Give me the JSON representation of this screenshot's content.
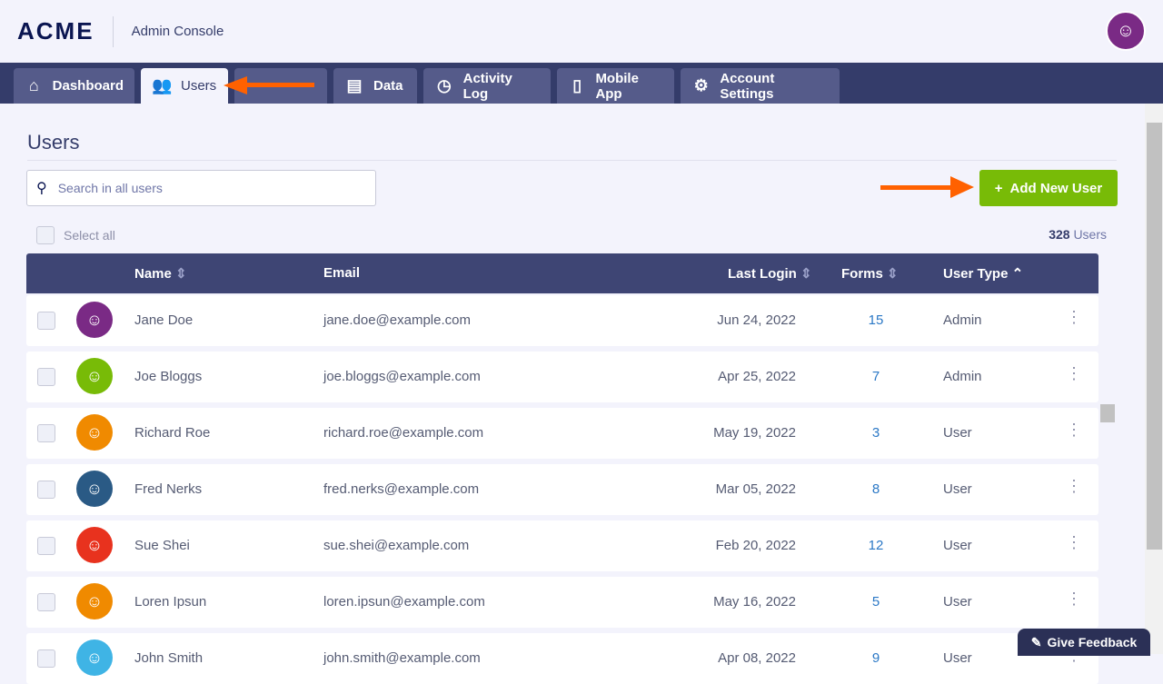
{
  "header": {
    "logo": "ACME",
    "app_title": "Admin Console"
  },
  "tabs": [
    {
      "label": "Dashboard",
      "icon": "home-icon"
    },
    {
      "label": "Users",
      "icon": "users-icon"
    },
    {
      "label": "",
      "icon": ""
    },
    {
      "label": "Data",
      "icon": "document-search-icon"
    },
    {
      "label": "Activity Log",
      "icon": "clock-icon"
    },
    {
      "label": "Mobile App",
      "icon": "phone-icon"
    },
    {
      "label": "Account Settings",
      "icon": "gear-icon"
    }
  ],
  "page": {
    "title": "Users",
    "search_placeholder": "Search in all users",
    "add_button": "Add New User",
    "select_all": "Select all",
    "count": "328",
    "count_label": "Users"
  },
  "columns": {
    "name": "Name",
    "email": "Email",
    "last_login": "Last Login",
    "forms": "Forms",
    "user_type": "User Type"
  },
  "users": [
    {
      "name": "Jane Doe",
      "email": "jane.doe@example.com",
      "last_login": "Jun 24, 2022",
      "forms": "15",
      "type": "Admin",
      "color": "#7a2a85"
    },
    {
      "name": "Joe Bloggs",
      "email": "joe.bloggs@example.com",
      "last_login": "Apr 25, 2022",
      "forms": "7",
      "type": "Admin",
      "color": "#78bb07"
    },
    {
      "name": "Richard Roe",
      "email": "richard.roe@example.com",
      "last_login": "May 19, 2022",
      "forms": "3",
      "type": "User",
      "color": "#f08a00"
    },
    {
      "name": "Fred Nerks",
      "email": "fred.nerks@example.com",
      "last_login": "Mar 05, 2022",
      "forms": "8",
      "type": "User",
      "color": "#2a5a85"
    },
    {
      "name": "Sue Shei",
      "email": "sue.shei@example.com",
      "last_login": "Feb 20, 2022",
      "forms": "12",
      "type": "User",
      "color": "#e8321e"
    },
    {
      "name": "Loren Ipsun",
      "email": "loren.ipsun@example.com",
      "last_login": "May 16, 2022",
      "forms": "5",
      "type": "User",
      "color": "#f08a00"
    },
    {
      "name": "John Smith",
      "email": "john.smith@example.com",
      "last_login": "Apr 08, 2022",
      "forms": "9",
      "type": "User",
      "color": "#3fb4e5"
    }
  ],
  "feedback": "Give Feedback"
}
